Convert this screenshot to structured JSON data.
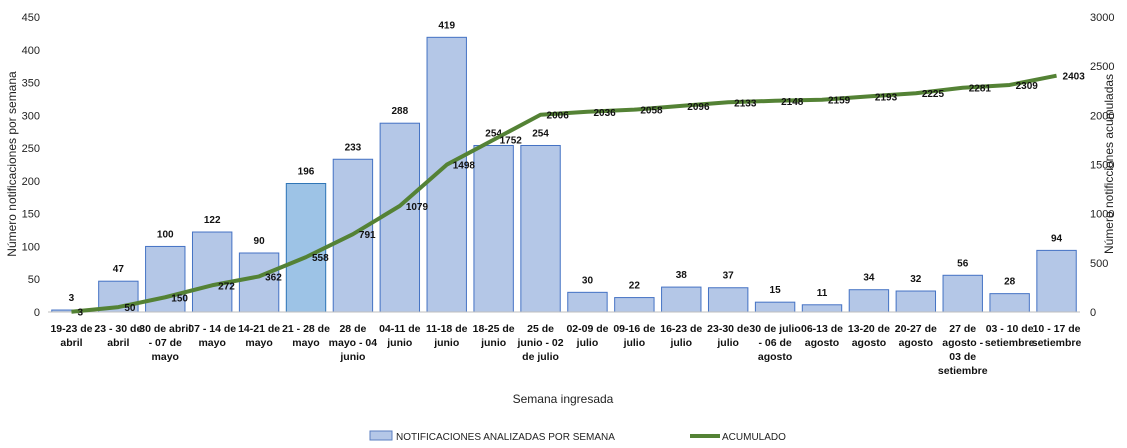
{
  "chart_data": {
    "type": "bar",
    "xlabel": "Semana ingresada",
    "ylabel_left": "Número notificaciones por semana",
    "ylabel_right": "Número notificciones acumuladas",
    "ylim_left": [
      0,
      450
    ],
    "ylim_right": [
      0,
      3000
    ],
    "yticks_left": [
      0,
      50,
      100,
      150,
      200,
      250,
      300,
      350,
      400,
      450
    ],
    "yticks_right": [
      0,
      500,
      1000,
      1500,
      2000,
      2500,
      3000
    ],
    "grid": false,
    "legend_position": "bottom",
    "categories": [
      [
        "19-23 de",
        "abril"
      ],
      [
        "23 - 30 de",
        "abril"
      ],
      [
        "30 de abril",
        "- 07 de",
        "mayo"
      ],
      [
        "07 - 14 de",
        "mayo"
      ],
      [
        "14-21 de",
        "mayo"
      ],
      [
        "21 - 28 de",
        "mayo"
      ],
      [
        "28 de",
        "mayo - 04",
        "junio"
      ],
      [
        "04-11 de",
        "junio"
      ],
      [
        "11-18 de",
        "junio"
      ],
      [
        "18-25 de",
        "junio"
      ],
      [
        "25 de",
        "junio - 02",
        "de julio"
      ],
      [
        "02-09 de",
        "julio"
      ],
      [
        "09-16 de",
        "julio"
      ],
      [
        "16-23 de",
        "julio"
      ],
      [
        "23-30 de",
        "julio"
      ],
      [
        "30 de julio",
        "- 06 de",
        "agosto"
      ],
      [
        "06-13 de",
        "agosto"
      ],
      [
        "13-20 de",
        "agosto"
      ],
      [
        "20-27 de",
        "agosto"
      ],
      [
        "27 de",
        "agosto -",
        "03 de",
        "setiembre"
      ],
      [
        "03 - 10 de",
        "setiembre"
      ],
      [
        "10 - 17 de",
        "setiembre"
      ]
    ],
    "series": [
      {
        "name": "NOTIFICACIONES ANALIZADAS POR SEMANA",
        "type": "bar",
        "axis": "left",
        "color": "#b4c7e7",
        "values": [
          3,
          47,
          100,
          122,
          90,
          196,
          233,
          288,
          419,
          254,
          254,
          30,
          22,
          38,
          37,
          15,
          11,
          34,
          32,
          56,
          28,
          94
        ]
      },
      {
        "name": "ACUMULADO",
        "type": "line",
        "axis": "right",
        "color": "#548235",
        "values": [
          3,
          50,
          150,
          272,
          362,
          558,
          791,
          1079,
          1498,
          1752,
          2006,
          2036,
          2058,
          2096,
          2133,
          2148,
          2159,
          2193,
          2225,
          2281,
          2309,
          2403
        ]
      }
    ]
  }
}
